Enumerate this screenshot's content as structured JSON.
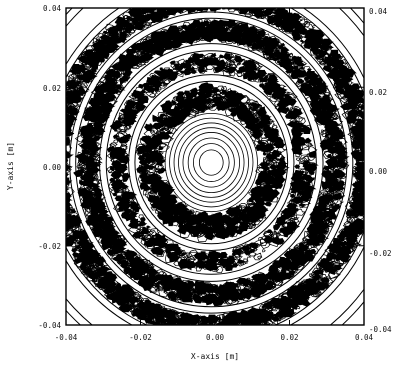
{
  "chart_data": {
    "type": "contour",
    "title": "",
    "xlabel": "X-axis [m]",
    "ylabel": "Y-axis [m]",
    "xlim": [
      -0.04,
      0.04
    ],
    "ylim": [
      -0.04,
      0.04
    ],
    "x_ticks": [
      -0.04,
      -0.02,
      0.0,
      0.02,
      0.04
    ],
    "y_ticks": [
      -0.04,
      -0.02,
      0.0,
      0.02,
      0.04
    ],
    "x_tick_labels": [
      "-0.04",
      "-0.02",
      "0.00",
      "0.02",
      "0.04"
    ],
    "y_tick_labels_left": [
      "-0.04",
      "-0.02",
      "0.00",
      "0.02",
      "0.04"
    ],
    "y_tick_labels_right": [
      "-0.04",
      "-0.02",
      "0.00",
      "0.02",
      "0.04"
    ],
    "grid": false,
    "line_color": "#000000",
    "center": [
      -0.001,
      0.001
    ],
    "smooth_contour_radii": [
      0.0032,
      0.0048,
      0.0062,
      0.0076,
      0.0088,
      0.01,
      0.0112,
      0.0124,
      0.0205,
      0.0222,
      0.0282,
      0.03,
      0.0364,
      0.038,
      0.0445,
      0.0462,
      0.052,
      0.054
    ],
    "noisy_bands": [
      {
        "r_inner": 0.0135,
        "r_outer": 0.0192,
        "density": "high"
      },
      {
        "r_inner": 0.0232,
        "r_outer": 0.0272,
        "density": "medium"
      },
      {
        "r_inner": 0.031,
        "r_outer": 0.0355,
        "density": "high"
      },
      {
        "r_inner": 0.039,
        "r_outer": 0.0435,
        "density": "high"
      }
    ]
  }
}
